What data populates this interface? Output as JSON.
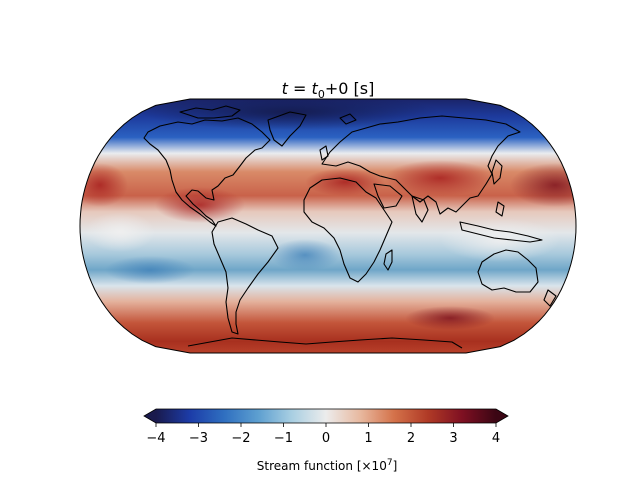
{
  "title": {
    "prefix": "t",
    "equals": " = ",
    "t0_base": "t",
    "t0_sub": "0",
    "suffix": "+0 [s]"
  },
  "map": {
    "projection": "Robinson",
    "field": "stream function",
    "coastlines": true,
    "coastline_color": "#000000"
  },
  "colorbar": {
    "label_text": "Stream function [×10",
    "label_exp": "7",
    "label_close": "]",
    "ticks": [
      "−4",
      "−3",
      "−2",
      "−1",
      "0",
      "1",
      "2",
      "3",
      "4"
    ],
    "tick_values": [
      -4,
      -3,
      -2,
      -1,
      0,
      1,
      2,
      3,
      4
    ],
    "range": [
      -4,
      4
    ],
    "extend": "both",
    "colormap": [
      "#1a1a4d",
      "#1c3ca8",
      "#2f6fc0",
      "#5d9fd0",
      "#a9cfe2",
      "#ececec",
      "#e8b9a0",
      "#d4724a",
      "#b03a26",
      "#7f1022",
      "#3b0614"
    ]
  }
}
